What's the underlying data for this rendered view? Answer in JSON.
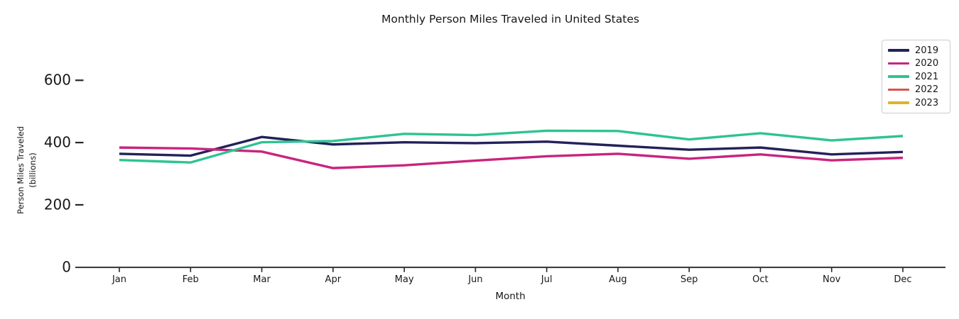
{
  "window": {
    "background": "#ffffff"
  },
  "chart_data": {
    "type": "line",
    "title": "Monthly Person Miles Traveled in United States",
    "xlabel": "Month",
    "ylabel": "Person Miles Traveled",
    "ylabel_unit": "(billions)",
    "categories": [
      "Jan",
      "Feb",
      "Mar",
      "Apr",
      "May",
      "Jun",
      "Jul",
      "Aug",
      "Sep",
      "Oct",
      "Nov",
      "Dec"
    ],
    "y_ticks": [
      0,
      200,
      400,
      600
    ],
    "ylim": [
      0,
      680
    ],
    "grid": false,
    "legend_position": "upper right",
    "axis_color": "#262626",
    "text_color": "#171717",
    "series": [
      {
        "name": "2019",
        "color": "#23215a",
        "values": [
          364,
          358,
          418,
          394,
          401,
          398,
          403,
          390,
          377,
          384,
          362,
          370
        ]
      },
      {
        "name": "2020",
        "color": "#c9247e",
        "values": [
          384,
          381,
          371,
          318,
          327,
          342,
          356,
          364,
          348,
          362,
          343,
          351
        ]
      },
      {
        "name": "2021",
        "color": "#2ec392",
        "values": [
          344,
          336,
          401,
          405,
          428,
          424,
          438,
          437,
          410,
          430,
          407,
          421
        ]
      },
      {
        "name": "2022",
        "color": "#d8544b",
        "values": []
      },
      {
        "name": "2023",
        "color": "#dfb32a",
        "values": []
      }
    ]
  }
}
